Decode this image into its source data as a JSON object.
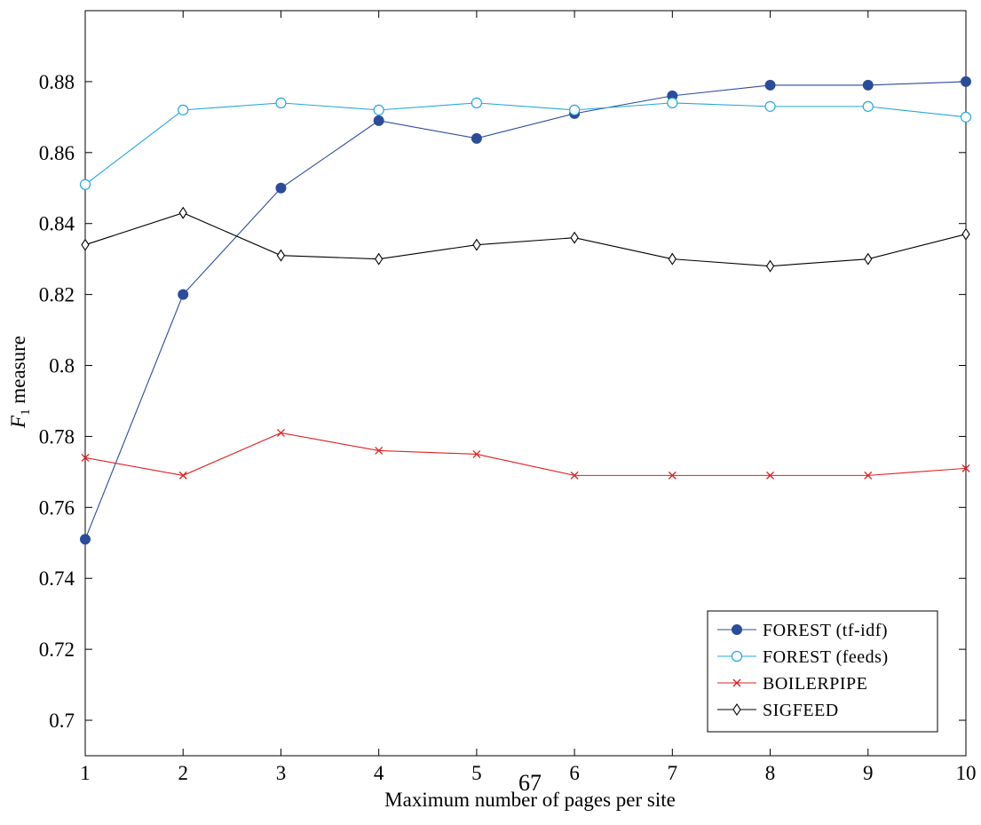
{
  "chart_data": {
    "type": "line",
    "title": "",
    "xlabel": "Maximum number of pages per site",
    "ylabel_main": "F",
    "ylabel_sub": "1",
    "ylabel_rest": " measure",
    "x": [
      1,
      2,
      3,
      4,
      5,
      6,
      7,
      8,
      9,
      10
    ],
    "xlim": [
      1,
      10
    ],
    "ylim": [
      0.69,
      0.9
    ],
    "xticks": [
      1,
      2,
      3,
      4,
      5,
      6,
      7,
      8,
      9,
      10
    ],
    "yticks": [
      0.7,
      0.72,
      0.74,
      0.76,
      0.78,
      0.8,
      0.82,
      0.84,
      0.86,
      0.88
    ],
    "yticklabels": [
      "0.7",
      "0.72",
      "0.74",
      "0.76",
      "0.78",
      "0.8",
      "0.82",
      "0.84",
      "0.86",
      "0.88"
    ],
    "grid": false,
    "legend_position": "bottom-right",
    "series": [
      {
        "name": "FOREST (tf-idf)",
        "color": "#2b4c9b",
        "marker": "filled-circle",
        "values": [
          0.751,
          0.82,
          0.85,
          0.869,
          0.864,
          0.871,
          0.876,
          0.879,
          0.879,
          0.88
        ]
      },
      {
        "name": "FOREST (feeds)",
        "color": "#22a7db",
        "marker": "open-circle",
        "values": [
          0.851,
          0.872,
          0.874,
          0.872,
          0.874,
          0.872,
          0.874,
          0.873,
          0.873,
          0.87
        ]
      },
      {
        "name": "BOILERPIPE",
        "color": "#e02020",
        "marker": "cross",
        "values": [
          0.774,
          0.769,
          0.781,
          0.776,
          0.775,
          0.769,
          0.769,
          0.769,
          0.769,
          0.771
        ]
      },
      {
        "name": "SIGFEED",
        "color": "#000000",
        "marker": "diamond",
        "values": [
          0.834,
          0.843,
          0.831,
          0.83,
          0.834,
          0.836,
          0.83,
          0.828,
          0.83,
          0.837
        ]
      }
    ]
  },
  "page_number": "67"
}
